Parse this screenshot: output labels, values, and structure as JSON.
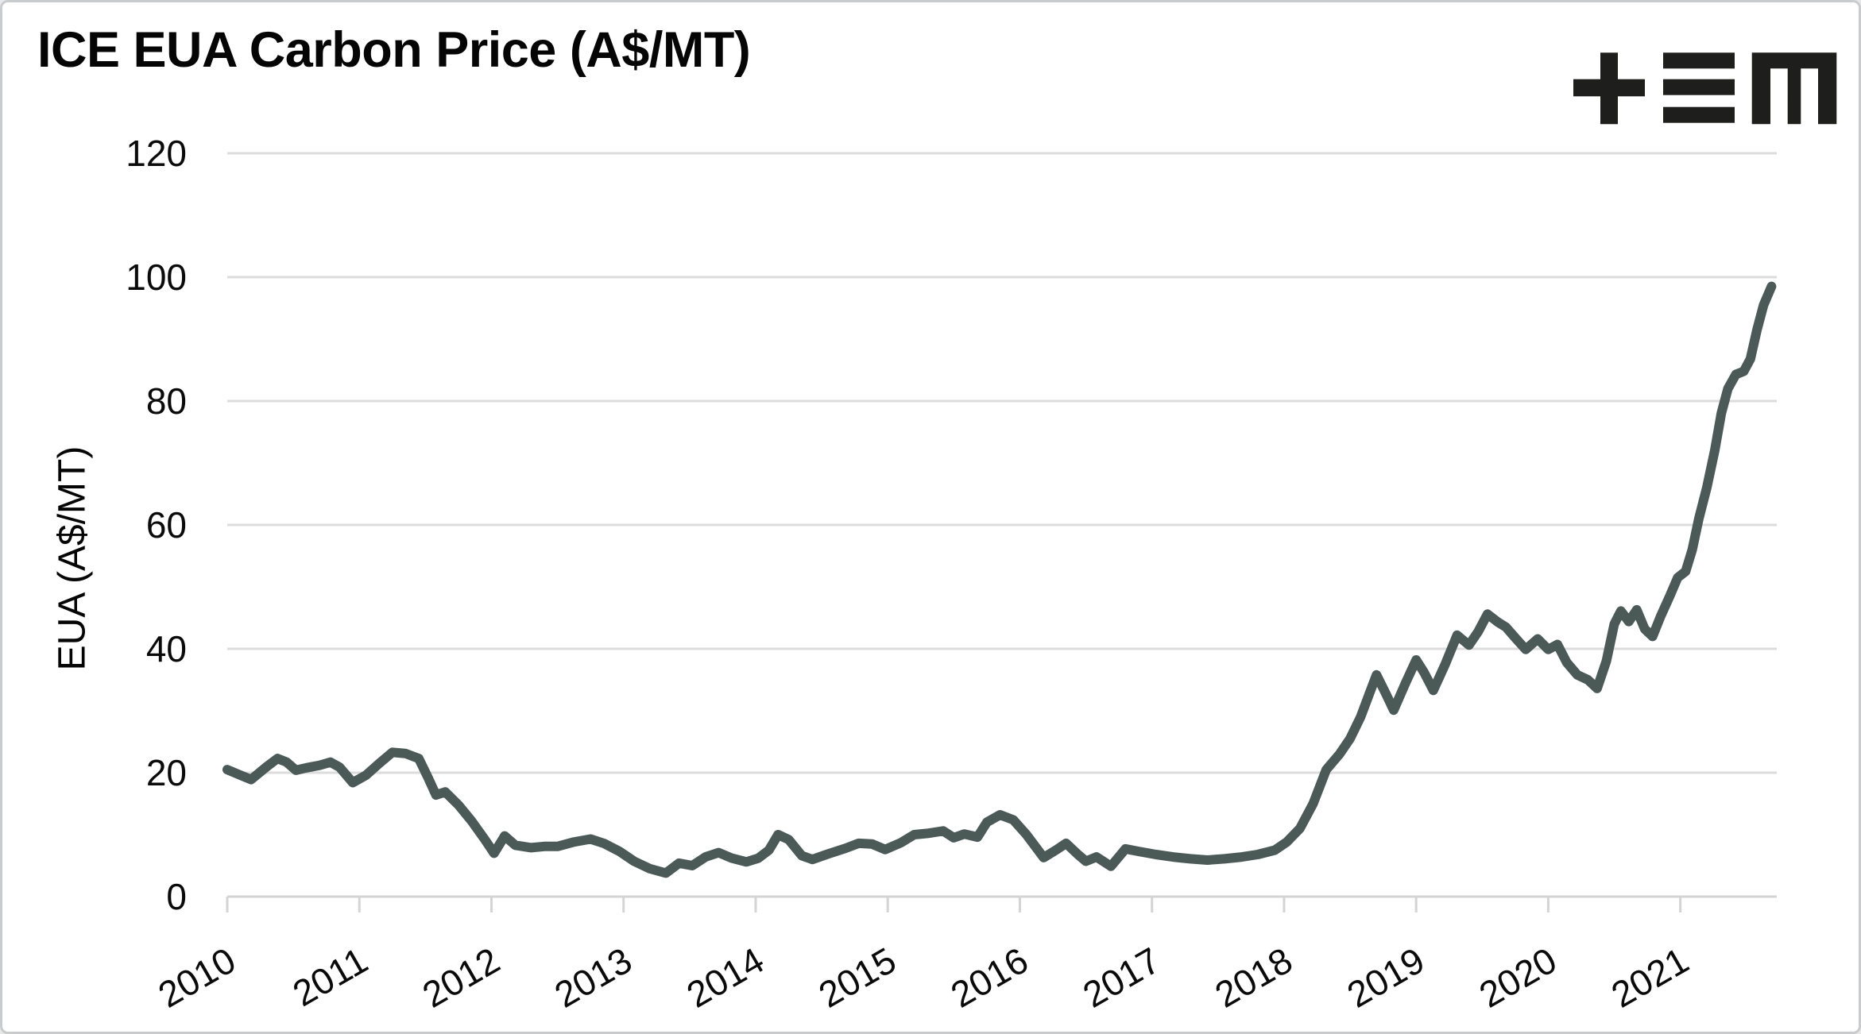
{
  "window": {
    "background": "#ffffff",
    "border_color": "#c9cbcc"
  },
  "header": {
    "title": "ICE EUA Carbon Price (A$/MT)"
  },
  "logo": {
    "name": "TEM logo (plus, triple-bar, m glyphs)",
    "color": "#1e1e1c"
  },
  "chart_data": {
    "type": "line",
    "title": "ICE EUA Carbon Price (A$/MT)",
    "xlabel": "",
    "ylabel": "EUA (A$/MT)",
    "xlim": [
      2010,
      2021.73
    ],
    "ylim": [
      0,
      120
    ],
    "yticks": [
      0,
      20,
      40,
      60,
      80,
      100,
      120
    ],
    "xticks": [
      2010,
      2011,
      2012,
      2013,
      2014,
      2015,
      2016,
      2017,
      2018,
      2019,
      2020,
      2021
    ],
    "xtick_labels": [
      "2010",
      "2011",
      "2012",
      "2013",
      "2014",
      "2015",
      "2016",
      "2017",
      "2018",
      "2019",
      "2020",
      "2021"
    ],
    "grid": "horizontal",
    "legend": "none",
    "line_color": "#4b5a57",
    "grid_color": "#dcdcdc",
    "axis_color": "#d4d4d4",
    "series": [
      {
        "name": "ICE EUA carbon price (A$/MT)",
        "points": [
          [
            2010.0,
            20.5
          ],
          [
            2010.1,
            19.6
          ],
          [
            2010.18,
            18.9
          ],
          [
            2010.3,
            21.0
          ],
          [
            2010.38,
            22.3
          ],
          [
            2010.45,
            21.7
          ],
          [
            2010.52,
            20.4
          ],
          [
            2010.6,
            20.8
          ],
          [
            2010.7,
            21.2
          ],
          [
            2010.78,
            21.7
          ],
          [
            2010.85,
            20.9
          ],
          [
            2010.95,
            18.4
          ],
          [
            2011.05,
            19.6
          ],
          [
            2011.15,
            21.5
          ],
          [
            2011.25,
            23.3
          ],
          [
            2011.35,
            23.1
          ],
          [
            2011.45,
            22.3
          ],
          [
            2011.52,
            19.2
          ],
          [
            2011.58,
            16.4
          ],
          [
            2011.65,
            16.9
          ],
          [
            2011.75,
            14.8
          ],
          [
            2011.85,
            12.2
          ],
          [
            2011.95,
            9.2
          ],
          [
            2012.02,
            7.0
          ],
          [
            2012.1,
            9.8
          ],
          [
            2012.18,
            8.3
          ],
          [
            2012.3,
            7.9
          ],
          [
            2012.4,
            8.1
          ],
          [
            2012.5,
            8.1
          ],
          [
            2012.62,
            8.8
          ],
          [
            2012.75,
            9.3
          ],
          [
            2012.85,
            8.6
          ],
          [
            2012.97,
            7.3
          ],
          [
            2013.08,
            5.7
          ],
          [
            2013.2,
            4.5
          ],
          [
            2013.32,
            3.8
          ],
          [
            2013.42,
            5.4
          ],
          [
            2013.52,
            5.0
          ],
          [
            2013.62,
            6.4
          ],
          [
            2013.72,
            7.1
          ],
          [
            2013.82,
            6.2
          ],
          [
            2013.93,
            5.6
          ],
          [
            2014.02,
            6.2
          ],
          [
            2014.1,
            7.5
          ],
          [
            2014.17,
            10.0
          ],
          [
            2014.25,
            9.2
          ],
          [
            2014.35,
            6.6
          ],
          [
            2014.43,
            6.0
          ],
          [
            2014.55,
            6.9
          ],
          [
            2014.68,
            7.8
          ],
          [
            2014.78,
            8.6
          ],
          [
            2014.88,
            8.5
          ],
          [
            2014.98,
            7.6
          ],
          [
            2015.1,
            8.7
          ],
          [
            2015.2,
            10.0
          ],
          [
            2015.3,
            10.2
          ],
          [
            2015.42,
            10.6
          ],
          [
            2015.5,
            9.5
          ],
          [
            2015.58,
            10.1
          ],
          [
            2015.68,
            9.6
          ],
          [
            2015.75,
            12.0
          ],
          [
            2015.85,
            13.2
          ],
          [
            2015.95,
            12.4
          ],
          [
            2016.05,
            10.0
          ],
          [
            2016.18,
            6.3
          ],
          [
            2016.28,
            7.6
          ],
          [
            2016.35,
            8.6
          ],
          [
            2016.44,
            6.8
          ],
          [
            2016.5,
            5.7
          ],
          [
            2016.58,
            6.4
          ],
          [
            2016.69,
            4.9
          ],
          [
            2016.8,
            7.7
          ],
          [
            2016.9,
            7.3
          ],
          [
            2017.03,
            6.8
          ],
          [
            2017.16,
            6.4
          ],
          [
            2017.29,
            6.1
          ],
          [
            2017.42,
            5.9
          ],
          [
            2017.55,
            6.1
          ],
          [
            2017.68,
            6.4
          ],
          [
            2017.8,
            6.8
          ],
          [
            2017.93,
            7.5
          ],
          [
            2018.02,
            8.8
          ],
          [
            2018.12,
            11.0
          ],
          [
            2018.22,
            15.0
          ],
          [
            2018.32,
            20.5
          ],
          [
            2018.42,
            23.0
          ],
          [
            2018.5,
            25.5
          ],
          [
            2018.58,
            29.0
          ],
          [
            2018.65,
            33.0
          ],
          [
            2018.7,
            35.8
          ],
          [
            2018.77,
            32.8
          ],
          [
            2018.83,
            30.1
          ],
          [
            2018.92,
            34.5
          ],
          [
            2019.0,
            38.2
          ],
          [
            2019.06,
            36.2
          ],
          [
            2019.13,
            33.3
          ],
          [
            2019.22,
            37.5
          ],
          [
            2019.31,
            42.2
          ],
          [
            2019.4,
            40.6
          ],
          [
            2019.47,
            42.8
          ],
          [
            2019.54,
            45.6
          ],
          [
            2019.62,
            44.3
          ],
          [
            2019.68,
            43.5
          ],
          [
            2019.75,
            41.8
          ],
          [
            2019.83,
            39.9
          ],
          [
            2019.92,
            41.6
          ],
          [
            2020.0,
            39.9
          ],
          [
            2020.07,
            40.7
          ],
          [
            2020.14,
            37.8
          ],
          [
            2020.22,
            35.8
          ],
          [
            2020.3,
            35.0
          ],
          [
            2020.37,
            33.6
          ],
          [
            2020.44,
            38.0
          ],
          [
            2020.5,
            44.0
          ],
          [
            2020.55,
            46.1
          ],
          [
            2020.61,
            44.4
          ],
          [
            2020.67,
            46.3
          ],
          [
            2020.73,
            43.2
          ],
          [
            2020.79,
            42.0
          ],
          [
            2020.85,
            45.2
          ],
          [
            2020.92,
            48.5
          ],
          [
            2020.98,
            51.5
          ],
          [
            2021.04,
            52.5
          ],
          [
            2021.09,
            56.0
          ],
          [
            2021.14,
            61.0
          ],
          [
            2021.2,
            66.0
          ],
          [
            2021.26,
            72.0
          ],
          [
            2021.31,
            78.0
          ],
          [
            2021.36,
            82.0
          ],
          [
            2021.42,
            84.3
          ],
          [
            2021.48,
            84.8
          ],
          [
            2021.53,
            86.8
          ],
          [
            2021.58,
            91.5
          ],
          [
            2021.63,
            95.5
          ],
          [
            2021.69,
            98.5
          ]
        ]
      }
    ]
  }
}
